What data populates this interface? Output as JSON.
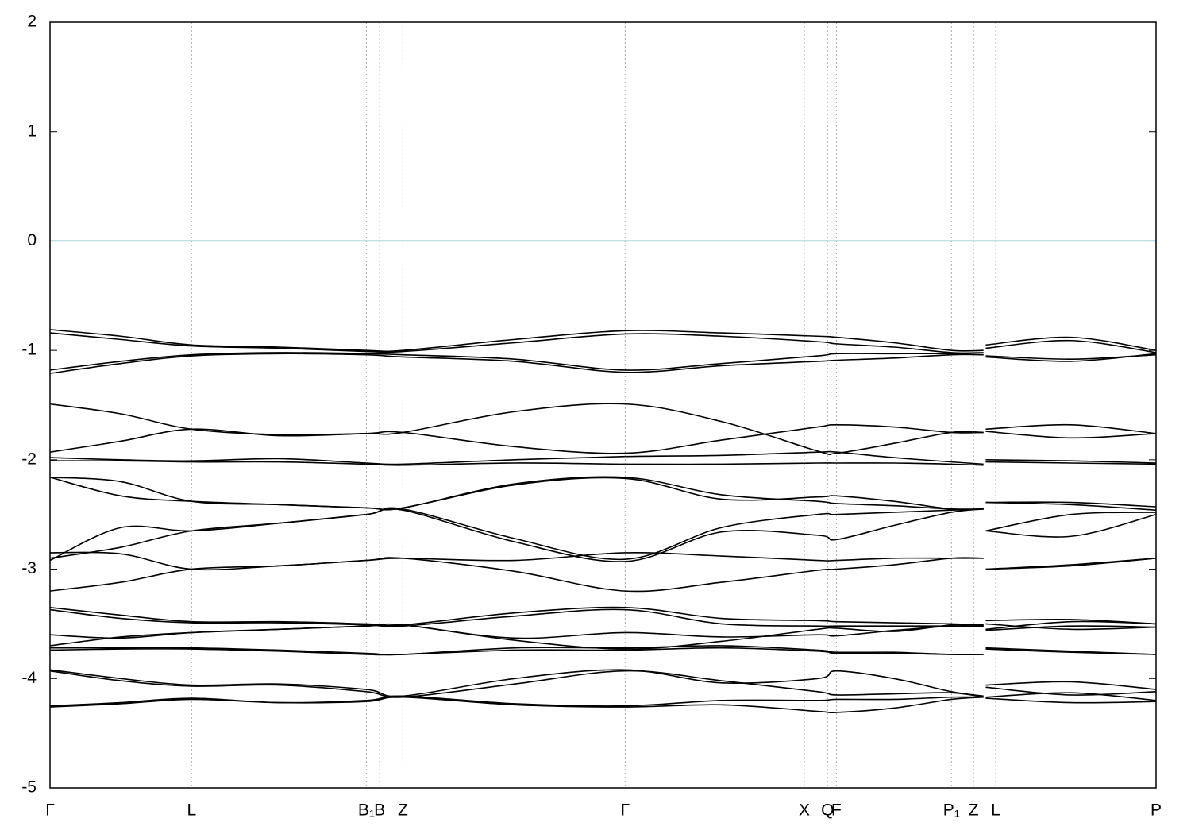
{
  "chart_data": {
    "type": "line",
    "xlim": [
      0,
      1
    ],
    "ylim": [
      -5,
      2
    ],
    "yticks": [
      -5,
      -4,
      -3,
      -2,
      -1,
      0,
      1,
      2
    ],
    "xticks": [
      {
        "value": 0,
        "label": "Γ"
      },
      {
        "value": 0.128,
        "label": "L"
      },
      {
        "value": 0.286,
        "label": "B₁"
      },
      {
        "value": 0.298,
        "label": "B"
      },
      {
        "value": 0.319,
        "label": "Z"
      },
      {
        "value": 0.52,
        "label": "Γ"
      },
      {
        "value": 0.682,
        "label": "X"
      },
      {
        "value": 0.703,
        "label": "Q"
      },
      {
        "value": 0.711,
        "label": "F"
      },
      {
        "value": 0.815,
        "label": "P₁"
      },
      {
        "value": 0.835,
        "label": "Z"
      },
      {
        "value": 0.855,
        "label": "L"
      },
      {
        "value": 1,
        "label": "P"
      }
    ],
    "x_grid": true,
    "hline": {
      "value": 0,
      "color": "#5aaec8"
    },
    "x": [
      0,
      0.064,
      0.128,
      0.207,
      0.286,
      0.319,
      0.42,
      0.52,
      0.607,
      0.694,
      0.711,
      0.763,
      0.815,
      0.844,
      0.845,
      0.846,
      0.923,
      1
    ],
    "series": [
      {
        "color": "#000000",
        "values": [
          -0.81,
          -0.87,
          -0.95,
          -0.97,
          -1.0,
          -1.0,
          -0.9,
          -0.82,
          -0.84,
          -0.87,
          -0.88,
          -0.93,
          -1.0,
          -1.0,
          null,
          -0.95,
          -0.88,
          -1.0
        ]
      },
      {
        "color": "#000000",
        "values": [
          -0.84,
          -0.9,
          -0.96,
          -0.98,
          -1.01,
          -1.01,
          -0.93,
          -0.85,
          -0.87,
          -0.92,
          -0.94,
          -0.97,
          -1.02,
          -1.02,
          null,
          -0.98,
          -0.91,
          -1.02
        ]
      },
      {
        "color": "#000000",
        "values": [
          -1.18,
          -1.1,
          -1.04,
          -1.02,
          -1.03,
          -1.04,
          -1.08,
          -1.18,
          -1.12,
          -1.05,
          -1.03,
          -1.03,
          -1.03,
          -1.04,
          null,
          -1.05,
          -1.08,
          -1.04
        ]
      },
      {
        "color": "#000000",
        "values": [
          -1.21,
          -1.12,
          -1.05,
          -1.03,
          -1.04,
          -1.06,
          -1.1,
          -1.2,
          -1.14,
          -1.1,
          -1.09,
          -1.07,
          -1.04,
          -1.04,
          null,
          -1.06,
          -1.1,
          -1.03
        ]
      },
      {
        "color": "#000000",
        "values": [
          -1.49,
          -1.58,
          -1.72,
          -1.77,
          -1.76,
          -1.75,
          -1.56,
          -1.49,
          -1.65,
          -1.92,
          -1.94,
          -1.85,
          -1.75,
          -1.75,
          null,
          -1.72,
          -1.68,
          -1.76
        ]
      },
      {
        "color": "#000000",
        "values": [
          -1.93,
          -1.83,
          -1.72,
          -1.78,
          -1.76,
          -1.75,
          -1.88,
          -1.94,
          -1.82,
          -1.7,
          -1.68,
          -1.7,
          -1.75,
          -1.75,
          null,
          -1.74,
          -1.8,
          -1.76
        ]
      },
      {
        "color": "#000000",
        "values": [
          -1.98,
          -2.0,
          -2.01,
          -1.99,
          -2.03,
          -2.04,
          -2.0,
          -1.97,
          -1.96,
          -1.93,
          -1.93,
          -1.98,
          -2.02,
          -2.04,
          null,
          -2.0,
          -2.01,
          -2.03
        ]
      },
      {
        "color": "#000000",
        "values": [
          -2.01,
          -2.01,
          -2.02,
          -2.02,
          -2.04,
          -2.05,
          -2.03,
          -2.04,
          -2.04,
          -2.03,
          -2.03,
          -2.03,
          -2.04,
          -2.05,
          null,
          -2.02,
          -2.03,
          -2.04
        ]
      },
      {
        "color": "#000000",
        "values": [
          -2.16,
          -2.2,
          -2.38,
          -2.41,
          -2.44,
          -2.44,
          -2.22,
          -2.16,
          -2.32,
          -2.38,
          -2.4,
          -2.42,
          -2.45,
          -2.45,
          null,
          -2.39,
          -2.39,
          -2.43
        ]
      },
      {
        "color": "#000000",
        "values": [
          -2.16,
          -2.33,
          -2.38,
          -2.41,
          -2.44,
          -2.44,
          -2.23,
          -2.17,
          -2.36,
          -2.34,
          -2.33,
          -2.38,
          -2.45,
          -2.45,
          null,
          -2.39,
          -2.41,
          -2.46
        ]
      },
      {
        "color": "#000000",
        "values": [
          -2.92,
          -2.62,
          -2.65,
          -2.58,
          -2.5,
          -2.45,
          -2.72,
          -2.91,
          -2.62,
          -2.5,
          -2.5,
          -2.48,
          -2.46,
          -2.45,
          null,
          -2.65,
          -2.5,
          -2.48
        ]
      },
      {
        "color": "#000000",
        "values": [
          -2.9,
          -2.8,
          -2.65,
          -2.58,
          -2.5,
          -2.46,
          -2.75,
          -2.93,
          -2.66,
          -2.69,
          -2.73,
          -2.6,
          -2.48,
          -2.45,
          null,
          -2.65,
          -2.7,
          -2.5
        ]
      },
      {
        "color": "#000000",
        "values": [
          -2.85,
          -2.86,
          -3.0,
          -2.97,
          -2.92,
          -2.9,
          -2.92,
          -2.85,
          -2.88,
          -2.92,
          -2.92,
          -2.9,
          -2.9,
          -2.9,
          null,
          -3.0,
          -2.96,
          -2.9
        ]
      },
      {
        "color": "#000000",
        "values": [
          -3.2,
          -3.12,
          -3.0,
          -2.97,
          -2.92,
          -2.9,
          -3.02,
          -3.2,
          -3.12,
          -3.01,
          -3.0,
          -2.96,
          -2.9,
          -2.9,
          null,
          -3.0,
          -2.97,
          -2.9
        ]
      },
      {
        "color": "#000000",
        "values": [
          -3.35,
          -3.42,
          -3.48,
          -3.48,
          -3.5,
          -3.51,
          -3.4,
          -3.35,
          -3.45,
          -3.47,
          -3.48,
          -3.49,
          -3.5,
          -3.51,
          null,
          -3.47,
          -3.46,
          -3.5
        ]
      },
      {
        "color": "#000000",
        "values": [
          -3.37,
          -3.45,
          -3.49,
          -3.49,
          -3.51,
          -3.52,
          -3.43,
          -3.37,
          -3.5,
          -3.52,
          -3.52,
          -3.52,
          -3.52,
          -3.52,
          null,
          -3.5,
          -3.55,
          -3.53
        ]
      },
      {
        "color": "#000000",
        "values": [
          -3.6,
          -3.63,
          -3.58,
          -3.55,
          -3.52,
          -3.51,
          -3.65,
          -3.73,
          -3.66,
          -3.55,
          -3.54,
          -3.57,
          -3.51,
          -3.51,
          null,
          -3.55,
          -3.48,
          -3.5
        ]
      },
      {
        "color": "#000000",
        "values": [
          -3.7,
          -3.62,
          -3.58,
          -3.55,
          -3.52,
          -3.51,
          -3.63,
          -3.58,
          -3.62,
          -3.6,
          -3.61,
          -3.56,
          -3.52,
          -3.52,
          null,
          -3.56,
          -3.52,
          -3.53
        ]
      },
      {
        "color": "#000000",
        "values": [
          -3.72,
          -3.72,
          -3.72,
          -3.74,
          -3.77,
          -3.78,
          -3.72,
          -3.72,
          -3.7,
          -3.74,
          -3.76,
          -3.76,
          -3.78,
          -3.78,
          null,
          -3.72,
          -3.75,
          -3.78
        ]
      },
      {
        "color": "#000000",
        "values": [
          -3.74,
          -3.73,
          -3.73,
          -3.75,
          -3.78,
          -3.78,
          -3.74,
          -3.74,
          -3.72,
          -3.75,
          -3.77,
          -3.77,
          -3.78,
          -3.78,
          null,
          -3.73,
          -3.76,
          -3.78
        ]
      },
      {
        "color": "#000000",
        "values": [
          -3.92,
          -4.0,
          -4.06,
          -4.05,
          -4.1,
          -4.16,
          -4.0,
          -3.92,
          -4.04,
          -4.0,
          -3.93,
          -4.0,
          -4.12,
          -4.16,
          null,
          -4.06,
          -4.03,
          -4.1
        ]
      },
      {
        "color": "#000000",
        "values": [
          -3.93,
          -4.02,
          -4.07,
          -4.06,
          -4.12,
          -4.17,
          -4.05,
          -3.93,
          -4.02,
          -4.12,
          -4.15,
          -4.14,
          -4.13,
          -4.17,
          null,
          -4.08,
          -4.15,
          -4.12
        ]
      },
      {
        "color": "#000000",
        "values": [
          -4.25,
          -4.22,
          -4.18,
          -4.22,
          -4.2,
          -4.16,
          -4.23,
          -4.25,
          -4.2,
          -4.2,
          -4.19,
          -4.19,
          -4.17,
          -4.17,
          null,
          -4.17,
          -4.13,
          -4.2
        ]
      },
      {
        "color": "#000000",
        "values": [
          -4.26,
          -4.23,
          -4.19,
          -4.22,
          -4.21,
          -4.17,
          -4.24,
          -4.26,
          -4.24,
          -4.3,
          -4.31,
          -4.27,
          -4.19,
          -4.17,
          null,
          -4.18,
          -4.22,
          -4.21
        ]
      }
    ]
  }
}
